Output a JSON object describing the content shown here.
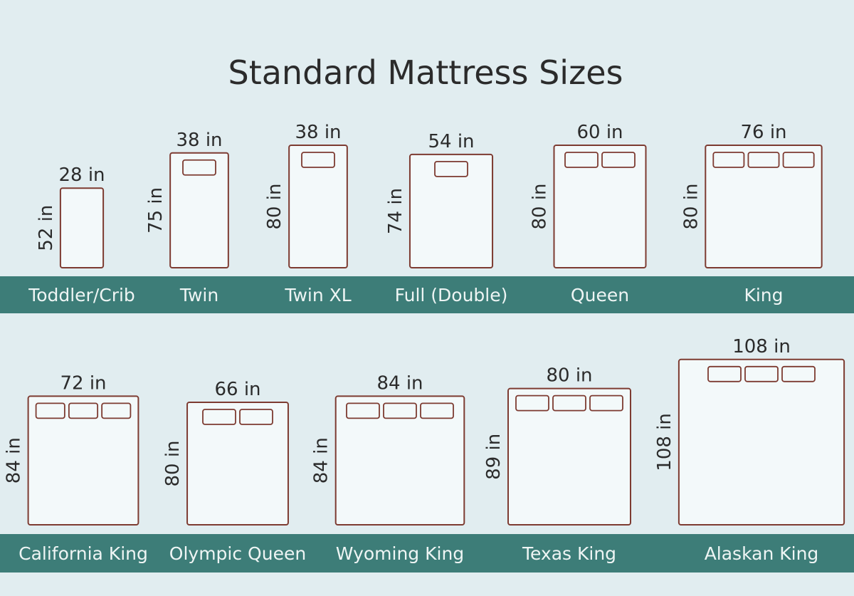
{
  "title": "Standard Mattress Sizes",
  "rows": [
    {
      "items": [
        {
          "name": "Toddler/Crib",
          "width": 28,
          "width_label": "28 in",
          "length": 52,
          "length_label": "52 in"
        },
        {
          "name": "Twin",
          "width": 38,
          "width_label": "38 in",
          "length": 75,
          "length_label": "75 in"
        },
        {
          "name": "Twin XL",
          "width": 38,
          "width_label": "38 in",
          "length": 80,
          "length_label": "80 in"
        },
        {
          "name": "Full (Double)",
          "width": 54,
          "width_label": "54 in",
          "length": 74,
          "length_label": "74 in"
        },
        {
          "name": "Queen",
          "width": 60,
          "width_label": "60 in",
          "length": 80,
          "length_label": "80 in"
        },
        {
          "name": "King",
          "width": 76,
          "width_label": "76 in",
          "length": 80,
          "length_label": "80 in"
        }
      ]
    },
    {
      "items": [
        {
          "name": "California King",
          "width": 72,
          "width_label": "72 in",
          "length": 84,
          "length_label": "84 in"
        },
        {
          "name": "Olympic Queen",
          "width": 66,
          "width_label": "66 in",
          "length": 80,
          "length_label": "80 in"
        },
        {
          "name": "Wyoming King",
          "width": 84,
          "width_label": "84 in",
          "length": 84,
          "length_label": "84 in"
        },
        {
          "name": "Texas King",
          "width": 80,
          "width_label": "80 in",
          "length": 89,
          "length_label": "89 in"
        },
        {
          "name": "Alaskan King",
          "width": 108,
          "width_label": "108 in",
          "length": 108,
          "length_label": "108 in"
        }
      ]
    }
  ]
}
